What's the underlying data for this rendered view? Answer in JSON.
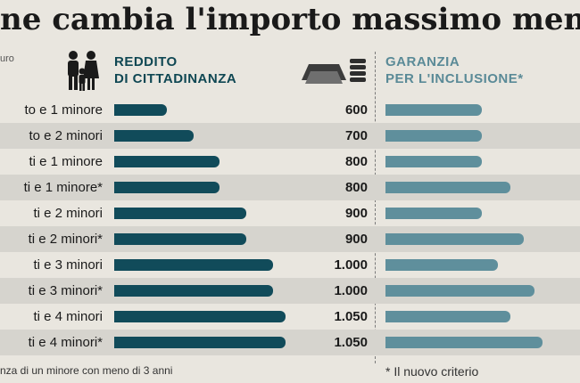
{
  "title": "ne cambia l'importo massimo mensi",
  "unit_label": "uro",
  "header_rdc": "REDDITO\nDI CITTADINANZA",
  "header_gpi": "GARANZIA\nPER L'INCLUSIONE*",
  "footnote_left": "nza di un minore con meno di 3 anni",
  "footnote_right": "* Il nuovo criterio",
  "colors": {
    "rdc_bar": "#114b5a",
    "gpi_bar": "#5f8f9c",
    "row_alt": "#d6d4ce",
    "background": "#e9e6df"
  },
  "chart_data": {
    "type": "bar",
    "orientation": "horizontal",
    "categories": [
      "to e 1 minore",
      "to e 2 minori",
      "ti e 1 minore",
      "ti e 1 minore*",
      "ti e 2 minori",
      "ti e 2 minori*",
      "ti e 3 minori",
      "ti e 3 minori*",
      "ti e 4 minori",
      "ti e 4 minori*"
    ],
    "value_labels": [
      "600",
      "700",
      "800",
      "800",
      "900",
      "900",
      "1.000",
      "1.000",
      "1.050",
      "1.050"
    ],
    "series": [
      {
        "name": "REDDITO DI CITTADINANZA",
        "values": [
          600,
          700,
          800,
          800,
          900,
          900,
          1000,
          1000,
          1050,
          1050
        ]
      },
      {
        "name": "GARANZIA PER L'INCLUSIONE*",
        "values": [
          600,
          600,
          600,
          780,
          600,
          860,
          700,
          930,
          780,
          980
        ]
      }
    ],
    "xlim": [
      0,
      1200
    ],
    "grid": false,
    "legend": "top"
  }
}
